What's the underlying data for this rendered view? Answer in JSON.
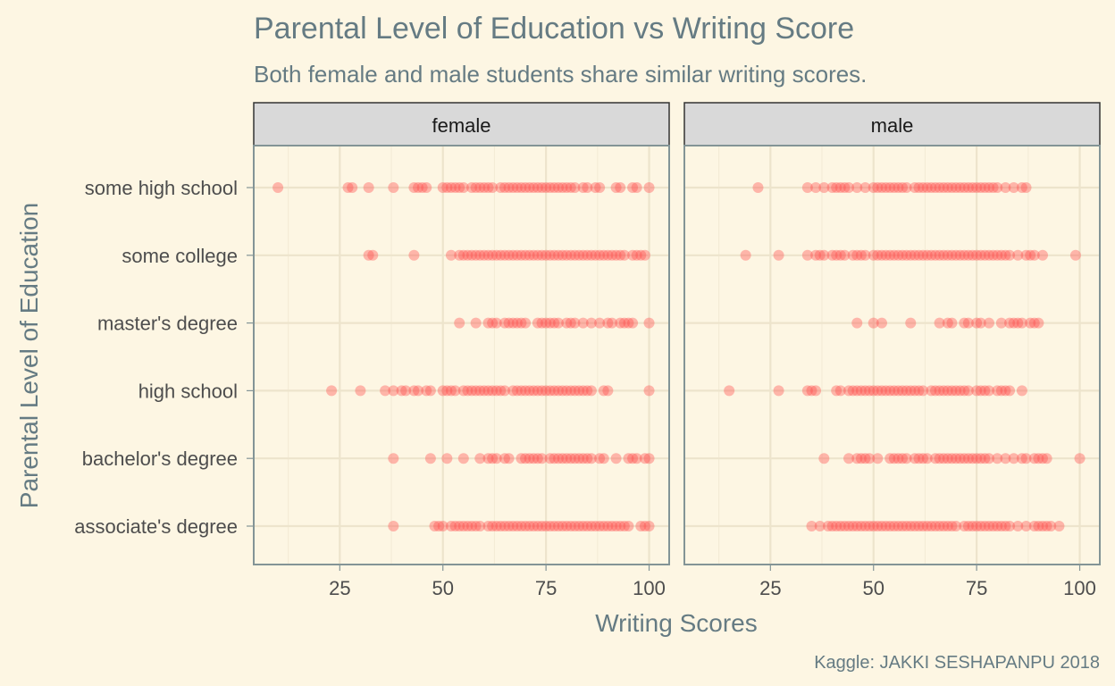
{
  "chart_data": {
    "type": "scatter",
    "title": "Parental Level of Education vs Writing Score",
    "subtitle": "Both female and male students share similar writing scores.",
    "xlabel": "Writing Scores",
    "ylabel": "Parental Level of Education",
    "caption": "Kaggle: JAKKI SESHAPANPU 2018",
    "facets": [
      "female",
      "male"
    ],
    "categories": [
      "some high school",
      "some college",
      "master's degree",
      "high school",
      "bachelor's degree",
      "associate's degree"
    ],
    "xlim": [
      5,
      104
    ],
    "xticks": [
      25,
      50,
      75,
      100
    ],
    "grid": true,
    "point_color": "#ff4d4d",
    "series": [
      {
        "facet": "female",
        "points": {
          "some high school": [
            10,
            27,
            28,
            32,
            38,
            43,
            44,
            45,
            46,
            50,
            51,
            52,
            53,
            54,
            55,
            57,
            58,
            59,
            60,
            61,
            62,
            64,
            65,
            66,
            67,
            68,
            69,
            70,
            71,
            72,
            73,
            74,
            75,
            76,
            77,
            78,
            79,
            80,
            81,
            82,
            84,
            85,
            87,
            88,
            92,
            93,
            96,
            97,
            100
          ],
          "some college": [
            32,
            33,
            43,
            52,
            54,
            55,
            56,
            57,
            58,
            59,
            60,
            61,
            62,
            63,
            64,
            65,
            66,
            67,
            68,
            69,
            70,
            71,
            72,
            73,
            74,
            75,
            76,
            77,
            78,
            79,
            80,
            81,
            82,
            83,
            84,
            85,
            86,
            87,
            88,
            89,
            90,
            91,
            92,
            93,
            94,
            96,
            97,
            98,
            99
          ],
          "master's degree": [
            54,
            58,
            61,
            62,
            63,
            65,
            66,
            67,
            68,
            69,
            70,
            73,
            74,
            75,
            76,
            77,
            78,
            80,
            81,
            82,
            84,
            86,
            88,
            90,
            91,
            93,
            94,
            95,
            96,
            100
          ],
          "high school": [
            23,
            30,
            36,
            38,
            40,
            41,
            43,
            44,
            46,
            47,
            50,
            51,
            52,
            53,
            55,
            56,
            57,
            58,
            59,
            60,
            61,
            62,
            63,
            64,
            65,
            67,
            68,
            69,
            70,
            71,
            72,
            73,
            74,
            75,
            76,
            77,
            78,
            79,
            80,
            81,
            82,
            83,
            84,
            85,
            86,
            89,
            90,
            100
          ],
          "bachelor's degree": [
            38,
            47,
            51,
            55,
            59,
            61,
            62,
            63,
            65,
            66,
            69,
            70,
            71,
            72,
            73,
            74,
            76,
            77,
            78,
            79,
            80,
            81,
            82,
            83,
            84,
            85,
            86,
            88,
            89,
            92,
            95,
            96,
            97,
            99,
            100
          ],
          "associate's degree": [
            38,
            48,
            49,
            50,
            52,
            53,
            54,
            55,
            56,
            57,
            58,
            59,
            61,
            62,
            63,
            64,
            65,
            66,
            67,
            68,
            69,
            70,
            71,
            72,
            73,
            74,
            75,
            76,
            77,
            78,
            79,
            80,
            81,
            82,
            83,
            84,
            85,
            86,
            87,
            88,
            89,
            90,
            91,
            92,
            93,
            94,
            95,
            98,
            99,
            100
          ]
        }
      },
      {
        "facet": "male",
        "points": {
          "some high school": [
            22,
            34,
            36,
            38,
            40,
            41,
            42,
            43,
            44,
            46,
            48,
            50,
            51,
            52,
            53,
            54,
            55,
            56,
            57,
            58,
            60,
            61,
            62,
            63,
            64,
            65,
            66,
            67,
            68,
            69,
            70,
            71,
            72,
            73,
            74,
            75,
            76,
            77,
            78,
            79,
            80,
            82,
            84,
            86,
            87
          ],
          "some college": [
            19,
            27,
            34,
            36,
            37,
            38,
            40,
            41,
            42,
            43,
            45,
            46,
            47,
            48,
            50,
            51,
            52,
            53,
            54,
            55,
            56,
            57,
            58,
            59,
            60,
            61,
            62,
            63,
            64,
            65,
            66,
            67,
            68,
            69,
            70,
            71,
            72,
            73,
            74,
            75,
            76,
            77,
            78,
            79,
            80,
            81,
            82,
            83,
            85,
            87,
            88,
            89,
            91,
            99
          ],
          "master's degree": [
            46,
            50,
            52,
            59,
            66,
            68,
            69,
            72,
            73,
            75,
            76,
            78,
            81,
            83,
            84,
            85,
            86,
            88,
            89,
            90
          ],
          "high school": [
            15,
            27,
            34,
            35,
            36,
            41,
            42,
            44,
            45,
            46,
            47,
            48,
            49,
            50,
            51,
            52,
            53,
            54,
            55,
            56,
            57,
            58,
            59,
            60,
            61,
            62,
            64,
            65,
            66,
            67,
            68,
            69,
            70,
            71,
            72,
            73,
            75,
            76,
            77,
            78,
            80,
            81,
            82,
            83,
            86
          ],
          "bachelor's degree": [
            38,
            44,
            46,
            47,
            48,
            49,
            51,
            54,
            55,
            56,
            57,
            58,
            60,
            61,
            62,
            63,
            65,
            66,
            67,
            68,
            69,
            70,
            71,
            72,
            73,
            74,
            75,
            76,
            77,
            78,
            80,
            82,
            84,
            86,
            87,
            89,
            90,
            91,
            92,
            100
          ],
          "associate's degree": [
            35,
            37,
            39,
            40,
            41,
            42,
            43,
            44,
            45,
            46,
            47,
            48,
            49,
            50,
            51,
            52,
            53,
            54,
            55,
            56,
            57,
            58,
            59,
            60,
            61,
            62,
            63,
            64,
            65,
            66,
            67,
            68,
            69,
            70,
            72,
            73,
            74,
            75,
            76,
            77,
            78,
            79,
            80,
            81,
            82,
            83,
            85,
            87,
            89,
            90,
            91,
            92,
            93,
            95
          ]
        }
      }
    ]
  }
}
